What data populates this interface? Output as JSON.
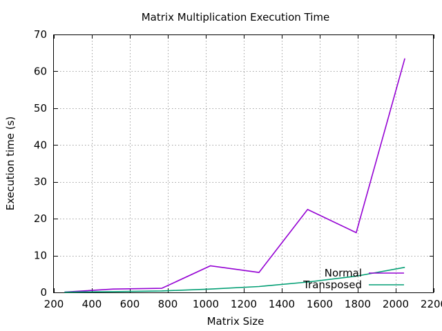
{
  "chart_data": {
    "type": "line",
    "title": "Matrix Multiplication Execution Time",
    "xlabel": "Matrix Size",
    "ylabel": "Execution time (s)",
    "xlim": [
      200,
      2200
    ],
    "ylim": [
      0,
      70
    ],
    "xticks": [
      200,
      400,
      600,
      800,
      1000,
      1200,
      1400,
      1600,
      1800,
      2000,
      2200
    ],
    "yticks": [
      0,
      10,
      20,
      30,
      40,
      50,
      60,
      70
    ],
    "grid": true,
    "legend_position": "bottom-right",
    "series": [
      {
        "name": "Normal",
        "color": "#9400d3",
        "x": [
          256,
          512,
          768,
          1024,
          1280,
          1536,
          1792,
          2048
        ],
        "y": [
          0.1,
          0.9,
          1.1,
          7.2,
          5.4,
          22.5,
          16.2,
          63.5
        ]
      },
      {
        "name": "Transposed",
        "color": "#009e73",
        "x": [
          256,
          512,
          768,
          1024,
          1280,
          1536,
          1792,
          2048
        ],
        "y": [
          0.05,
          0.2,
          0.4,
          0.9,
          1.6,
          2.8,
          4.4,
          6.8
        ]
      }
    ]
  }
}
